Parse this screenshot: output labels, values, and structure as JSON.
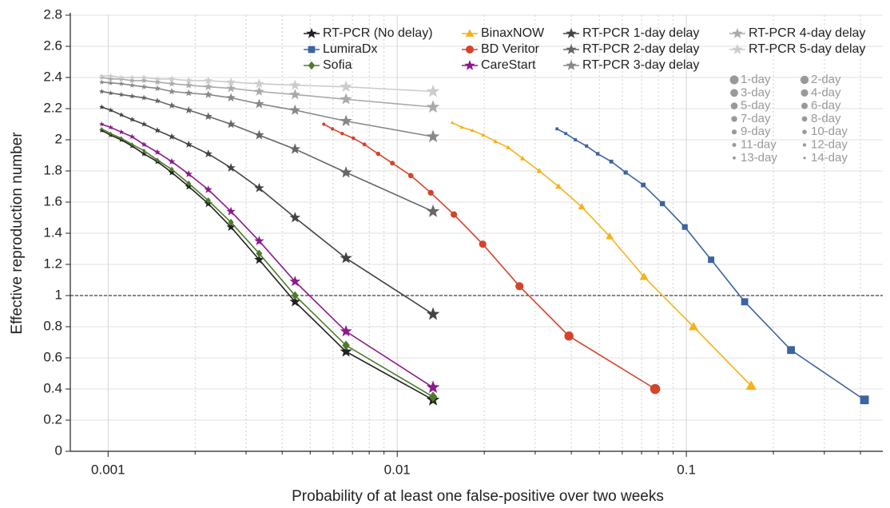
{
  "chart_data": {
    "type": "line",
    "xlabel": "Probability of at least one false-positive over two weeks",
    "ylabel": "Effective reproduction number",
    "xscale": "log",
    "xlim": [
      0.00074,
      0.478
    ],
    "ylim": [
      0,
      2.8
    ],
    "xticks": [
      0.001,
      0.01,
      0.1
    ],
    "xminor_ticks": [
      0.002,
      0.003,
      0.004,
      0.005,
      0.006,
      0.007,
      0.008,
      0.009,
      0.02,
      0.03,
      0.04,
      0.05,
      0.06,
      0.07,
      0.08,
      0.09,
      0.2,
      0.3,
      0.4
    ],
    "yticks": [
      0,
      0.2,
      0.4,
      0.6,
      0.8,
      1,
      1.2,
      1.4,
      1.6,
      1.8,
      2,
      2.2,
      2.4,
      2.6,
      2.8
    ],
    "grid": true,
    "hline": 1,
    "legend_position": "upper right",
    "series": [
      {
        "name": "RT-PCR (No delay)",
        "color": "#222222",
        "marker": "star",
        "x": [
          0.00095,
          0.00102,
          0.00111,
          0.00121,
          0.00133,
          0.00148,
          0.00166,
          0.0019,
          0.00222,
          0.00266,
          0.00333,
          0.00443,
          0.00665,
          0.0133
        ],
        "values": [
          2.06,
          2.03,
          2.0,
          1.96,
          1.91,
          1.86,
          1.79,
          1.7,
          1.59,
          1.44,
          1.23,
          0.96,
          0.64,
          0.33
        ]
      },
      {
        "name": "LumiraDx",
        "color": "#3b64a0",
        "marker": "square",
        "x": [
          0.03568,
          0.03828,
          0.0413,
          0.04515,
          0.04936,
          0.055,
          0.06166,
          0.07093,
          0.08263,
          0.0988,
          0.1218,
          0.1591,
          0.2301,
          0.413
        ],
        "values": [
          2.07,
          2.04,
          2.0,
          1.96,
          1.91,
          1.86,
          1.79,
          1.71,
          1.59,
          1.44,
          1.23,
          0.96,
          0.65,
          0.33
        ]
      },
      {
        "name": "Sofia",
        "color": "#4e7a2a",
        "marker": "diamond",
        "x": [
          0.00095,
          0.00102,
          0.00111,
          0.00121,
          0.00133,
          0.00148,
          0.00166,
          0.0019,
          0.00222,
          0.00266,
          0.00333,
          0.00443,
          0.00665,
          0.0133
        ],
        "values": [
          2.07,
          2.04,
          2.01,
          1.97,
          1.93,
          1.87,
          1.81,
          1.72,
          1.61,
          1.47,
          1.27,
          1.0,
          0.68,
          0.35
        ]
      },
      {
        "name": "BinaxNOW",
        "color": "#f5b21b",
        "marker": "triangle",
        "x": [
          0.0155,
          0.01674,
          0.01819,
          0.01988,
          0.02187,
          0.02421,
          0.02715,
          0.03102,
          0.03614,
          0.04346,
          0.05429,
          0.07137,
          0.1058,
          0.1675
        ],
        "values": [
          2.11,
          2.08,
          2.06,
          2.03,
          1.99,
          1.95,
          1.88,
          1.8,
          1.7,
          1.57,
          1.38,
          1.12,
          0.8,
          0.42
        ]
      },
      {
        "name": "BD Veritor",
        "color": "#d5432b",
        "marker": "circle",
        "x": [
          0.00557,
          0.00597,
          0.00645,
          0.00705,
          0.0077,
          0.00859,
          0.00962,
          0.01114,
          0.01306,
          0.0157,
          0.01975,
          0.02647,
          0.03925,
          0.078
        ],
        "values": [
          2.1,
          2.07,
          2.04,
          2.01,
          1.97,
          1.91,
          1.85,
          1.77,
          1.66,
          1.52,
          1.33,
          1.06,
          0.74,
          0.4
        ]
      },
      {
        "name": "CareStart",
        "color": "#8b1a8b",
        "marker": "star",
        "x": [
          0.00095,
          0.00102,
          0.00111,
          0.00121,
          0.00133,
          0.00148,
          0.00166,
          0.0019,
          0.00222,
          0.00266,
          0.00333,
          0.00443,
          0.00665,
          0.0133
        ],
        "values": [
          2.1,
          2.08,
          2.05,
          2.02,
          1.97,
          1.92,
          1.86,
          1.78,
          1.68,
          1.54,
          1.35,
          1.09,
          0.77,
          0.41
        ]
      },
      {
        "name": "RT-PCR 1-day delay",
        "color": "#444444",
        "marker": "star",
        "x": [
          0.00095,
          0.00102,
          0.00111,
          0.00121,
          0.00133,
          0.00148,
          0.00166,
          0.0019,
          0.00222,
          0.00266,
          0.00333,
          0.00443,
          0.00665,
          0.0133
        ],
        "values": [
          2.21,
          2.19,
          2.16,
          2.13,
          2.1,
          2.06,
          2.02,
          1.97,
          1.91,
          1.82,
          1.69,
          1.5,
          1.24,
          0.88
        ]
      },
      {
        "name": "RT-PCR 2-day delay",
        "color": "#666666",
        "marker": "star",
        "x": [
          0.00095,
          0.00102,
          0.00111,
          0.00121,
          0.00133,
          0.00148,
          0.00166,
          0.0019,
          0.00222,
          0.00266,
          0.00333,
          0.00443,
          0.00665,
          0.0133
        ],
        "values": [
          2.31,
          2.3,
          2.29,
          2.28,
          2.27,
          2.25,
          2.22,
          2.19,
          2.15,
          2.1,
          2.03,
          1.94,
          1.79,
          1.54
        ]
      },
      {
        "name": "RT-PCR 3-day delay",
        "color": "#888888",
        "marker": "star",
        "x": [
          0.00095,
          0.00102,
          0.00111,
          0.00121,
          0.00133,
          0.00148,
          0.00166,
          0.0019,
          0.00222,
          0.00266,
          0.00333,
          0.00443,
          0.00665,
          0.0133
        ],
        "values": [
          2.37,
          2.365,
          2.36,
          2.35,
          2.34,
          2.33,
          2.31,
          2.3,
          2.29,
          2.27,
          2.23,
          2.19,
          2.12,
          2.02
        ]
      },
      {
        "name": "RT-PCR 4-day delay",
        "color": "#aaaaaa",
        "marker": "star",
        "x": [
          0.00095,
          0.00102,
          0.00111,
          0.00121,
          0.00133,
          0.00148,
          0.00166,
          0.0019,
          0.00222,
          0.00266,
          0.00333,
          0.00443,
          0.00665,
          0.0133
        ],
        "values": [
          2.4,
          2.39,
          2.39,
          2.38,
          2.38,
          2.37,
          2.36,
          2.35,
          2.34,
          2.33,
          2.31,
          2.29,
          2.26,
          2.21
        ]
      },
      {
        "name": "RT-PCR 5-day delay",
        "color": "#cccccc",
        "marker": "star",
        "x": [
          0.00095,
          0.00102,
          0.00111,
          0.00121,
          0.00133,
          0.00148,
          0.00166,
          0.0019,
          0.00222,
          0.00266,
          0.00333,
          0.00443,
          0.00665,
          0.0133
        ],
        "values": [
          2.41,
          2.41,
          2.4,
          2.4,
          2.4,
          2.39,
          2.39,
          2.38,
          2.38,
          2.37,
          2.36,
          2.35,
          2.34,
          2.31
        ]
      }
    ],
    "size_legend": [
      "1-day",
      "2-day",
      "3-day",
      "4-day",
      "5-day",
      "6-day",
      "7-day",
      "8-day",
      "9-day",
      "10-day",
      "11-day",
      "12-day",
      "13-day",
      "14-day"
    ],
    "size_legend_color": "#999999"
  }
}
